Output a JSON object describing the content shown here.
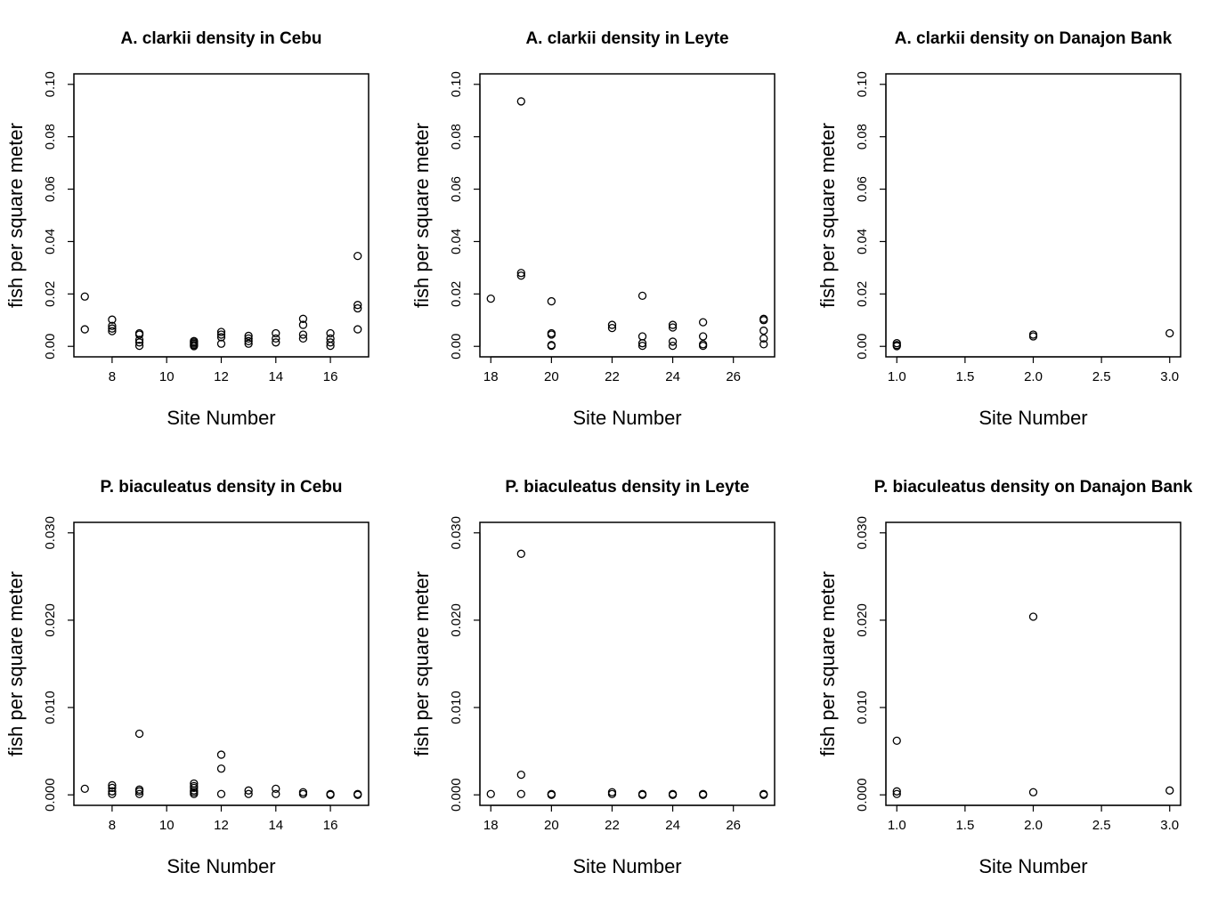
{
  "chart_data": [
    {
      "type": "scatter",
      "title": "A. clarkii density in Cebu",
      "xlabel": "Site Number",
      "ylabel": "fish per square meter",
      "xlim": [
        7,
        17
      ],
      "ylim": [
        0,
        0.1
      ],
      "xticks": [
        8,
        10,
        12,
        14,
        16
      ],
      "xtick_labels": [
        "8",
        "10",
        "12",
        "14",
        "16"
      ],
      "yticks": [
        0,
        0.02,
        0.04,
        0.06,
        0.08,
        0.1
      ],
      "ytick_labels": [
        "0.00",
        "0.02",
        "0.04",
        "0.06",
        "0.08",
        "0.10"
      ],
      "grid": false,
      "x": [
        7,
        7,
        8,
        8,
        8,
        8,
        9,
        9,
        9,
        9,
        9,
        11,
        11,
        11,
        11,
        11,
        12,
        12,
        12,
        12,
        13,
        13,
        13,
        13,
        14,
        14,
        14,
        15,
        15,
        15,
        15,
        16,
        16,
        16,
        16,
        17,
        17,
        17,
        17
      ],
      "y": [
        0.019,
        0.0065,
        0.0102,
        0.0078,
        0.0068,
        0.0058,
        0.005,
        0.0045,
        0.0025,
        0.0015,
        0.0002,
        0.002,
        0.0015,
        0.001,
        0.0005,
        0.0001,
        0.0055,
        0.0045,
        0.0035,
        0.001,
        0.004,
        0.003,
        0.002,
        0.001,
        0.005,
        0.003,
        0.0015,
        0.0105,
        0.0082,
        0.0045,
        0.003,
        0.005,
        0.003,
        0.0015,
        0.0002,
        0.0345,
        0.0158,
        0.0145,
        0.0065
      ]
    },
    {
      "type": "scatter",
      "title": "A. clarkii density in Leyte",
      "xlabel": "Site Number",
      "ylabel": "fish per square meter",
      "xlim": [
        18,
        27
      ],
      "ylim": [
        0,
        0.1
      ],
      "xticks": [
        18,
        20,
        22,
        24,
        26
      ],
      "xtick_labels": [
        "18",
        "20",
        "22",
        "24",
        "26"
      ],
      "yticks": [
        0,
        0.02,
        0.04,
        0.06,
        0.08,
        0.1
      ],
      "ytick_labels": [
        "0.00",
        "0.02",
        "0.04",
        "0.06",
        "0.08",
        "0.10"
      ],
      "grid": false,
      "x": [
        18,
        19,
        19,
        19,
        20,
        20,
        20,
        20,
        20,
        22,
        22,
        23,
        23,
        23,
        23,
        24,
        24,
        24,
        24,
        25,
        25,
        25,
        25,
        27,
        27,
        27,
        27,
        27
      ],
      "y": [
        0.0182,
        0.0935,
        0.028,
        0.027,
        0.0172,
        0.005,
        0.0045,
        0.0005,
        0.0002,
        0.0082,
        0.007,
        0.0193,
        0.0038,
        0.0012,
        0.0002,
        0.0082,
        0.0072,
        0.0018,
        0.0002,
        0.0092,
        0.0038,
        0.0008,
        0.0002,
        0.0105,
        0.01,
        0.006,
        0.003,
        0.0008
      ]
    },
    {
      "type": "scatter",
      "title": "A. clarkii density on Danajon Bank",
      "xlabel": "Site Number",
      "ylabel": "fish per square meter",
      "xlim": [
        1,
        3
      ],
      "ylim": [
        0,
        0.1
      ],
      "xticks": [
        1.0,
        1.5,
        2.0,
        2.5,
        3.0
      ],
      "xtick_labels": [
        "1.0",
        "1.5",
        "2.0",
        "2.5",
        "3.0"
      ],
      "yticks": [
        0,
        0.02,
        0.04,
        0.06,
        0.08,
        0.1
      ],
      "ytick_labels": [
        "0.00",
        "0.02",
        "0.04",
        "0.06",
        "0.08",
        "0.10"
      ],
      "grid": false,
      "x": [
        1,
        1,
        1,
        2,
        2,
        3
      ],
      "y": [
        0.0012,
        0.0005,
        0.0001,
        0.0045,
        0.0038,
        0.005
      ]
    },
    {
      "type": "scatter",
      "title": "P. biaculeatus density in Cebu",
      "xlabel": "Site Number",
      "ylabel": "fish per square meter",
      "xlim": [
        7,
        17
      ],
      "ylim": [
        0,
        0.03
      ],
      "xticks": [
        8,
        10,
        12,
        14,
        16
      ],
      "xtick_labels": [
        "8",
        "10",
        "12",
        "14",
        "16"
      ],
      "yticks": [
        0,
        0.01,
        0.02,
        0.03
      ],
      "ytick_labels": [
        "0.000",
        "0.010",
        "0.020",
        "0.030"
      ],
      "grid": false,
      "x": [
        7,
        8,
        8,
        8,
        8,
        9,
        9,
        9,
        9,
        11,
        11,
        11,
        11,
        11,
        11,
        12,
        12,
        12,
        13,
        13,
        14,
        14,
        15,
        15,
        16,
        16,
        17,
        17
      ],
      "y": [
        0.0007,
        0.0011,
        0.0008,
        0.0004,
        0.0001,
        0.007,
        0.0006,
        0.0004,
        0.0001,
        0.0013,
        0.001,
        0.0008,
        0.0005,
        0.0003,
        0.0001,
        0.0046,
        0.003,
        0.0001,
        0.0005,
        0.0001,
        0.0007,
        0.0001,
        0.0003,
        0.0001,
        0.0001,
        0.0,
        0.0001,
        0.0
      ]
    },
    {
      "type": "scatter",
      "title": "P. biaculeatus density in Leyte",
      "xlabel": "Site Number",
      "ylabel": "fish per square meter",
      "xlim": [
        18,
        27
      ],
      "ylim": [
        0,
        0.03
      ],
      "xticks": [
        18,
        20,
        22,
        24,
        26
      ],
      "xtick_labels": [
        "18",
        "20",
        "22",
        "24",
        "26"
      ],
      "yticks": [
        0,
        0.01,
        0.02,
        0.03
      ],
      "ytick_labels": [
        "0.000",
        "0.010",
        "0.020",
        "0.030"
      ],
      "grid": false,
      "x": [
        18,
        19,
        19,
        19,
        20,
        20,
        22,
        22,
        23,
        23,
        24,
        24,
        25,
        25,
        27,
        27
      ],
      "y": [
        0.0001,
        0.0276,
        0.0023,
        0.0001,
        0.0001,
        0.0,
        0.0003,
        0.0001,
        0.0001,
        0.0,
        0.0001,
        0.0,
        0.0001,
        0.0,
        0.0001,
        0.0
      ]
    },
    {
      "type": "scatter",
      "title": "P. biaculeatus density on Danajon Bank",
      "xlabel": "Site Number",
      "ylabel": "fish per square meter",
      "xlim": [
        1,
        3
      ],
      "ylim": [
        0,
        0.03
      ],
      "xticks": [
        1.0,
        1.5,
        2.0,
        2.5,
        3.0
      ],
      "xtick_labels": [
        "1.0",
        "1.5",
        "2.0",
        "2.5",
        "3.0"
      ],
      "yticks": [
        0,
        0.01,
        0.02,
        0.03
      ],
      "ytick_labels": [
        "0.000",
        "0.010",
        "0.020",
        "0.030"
      ],
      "grid": false,
      "x": [
        1,
        1,
        1,
        2,
        2,
        3
      ],
      "y": [
        0.0062,
        0.0004,
        0.0001,
        0.0204,
        0.0003,
        0.0005
      ]
    }
  ]
}
